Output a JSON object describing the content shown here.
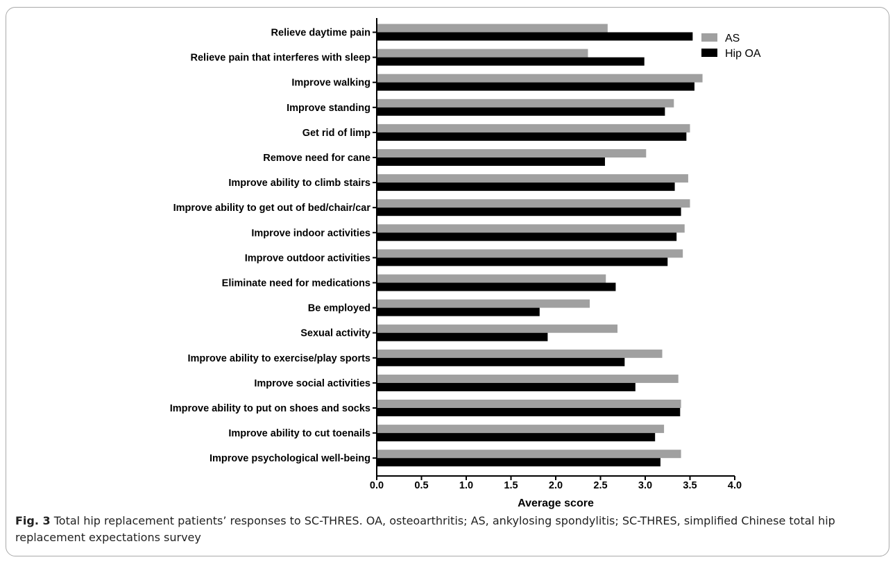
{
  "colors": {
    "AS": "#a0a0a0",
    "Hip OA": "#000000",
    "axis": "#000000"
  },
  "caption": {
    "label": "Fig. 3",
    "text": "Total hip replacement patients’ responses to SC-THRES. OA, osteoarthritis; AS, ankylosing spondylitis; SC-THRES, simplified Chinese total hip replacement expectations survey"
  },
  "chart_data": {
    "type": "bar",
    "orientation": "horizontal",
    "xlabel": "Average score",
    "xlim": [
      0,
      4
    ],
    "x_ticks": [
      "0.0",
      "0.5",
      "1.0",
      "1.5",
      "2.0",
      "2.5",
      "3.0",
      "3.5",
      "4.0"
    ],
    "legend_position": "top-right",
    "grid": false,
    "categories": [
      "Relieve daytime pain",
      "Relieve pain that interferes with sleep",
      "Improve walking",
      "Improve standing",
      "Get rid of limp",
      "Remove need for cane",
      "Improve ability to climb stairs",
      "Improve ability to get out of bed/chair/car",
      "Improve indoor activities",
      "Improve outdoor activities",
      "Eliminate need for medications",
      "Be employed",
      "Sexual activity",
      "Improve ability to exercise/play sports",
      "Improve social activities",
      "Improve ability to put on shoes and socks",
      "Improve ability to cut toenails",
      "Improve psychological well-being"
    ],
    "series": [
      {
        "name": "AS",
        "values": [
          2.58,
          2.36,
          3.64,
          3.32,
          3.5,
          3.01,
          3.48,
          3.5,
          3.44,
          3.42,
          2.56,
          2.38,
          2.69,
          3.19,
          3.37,
          3.4,
          3.21,
          3.4
        ]
      },
      {
        "name": "Hip OA",
        "values": [
          3.53,
          2.99,
          3.55,
          3.22,
          3.46,
          2.55,
          3.33,
          3.4,
          3.35,
          3.25,
          2.67,
          1.82,
          1.91,
          2.77,
          2.89,
          3.39,
          3.11,
          3.17
        ]
      }
    ]
  }
}
